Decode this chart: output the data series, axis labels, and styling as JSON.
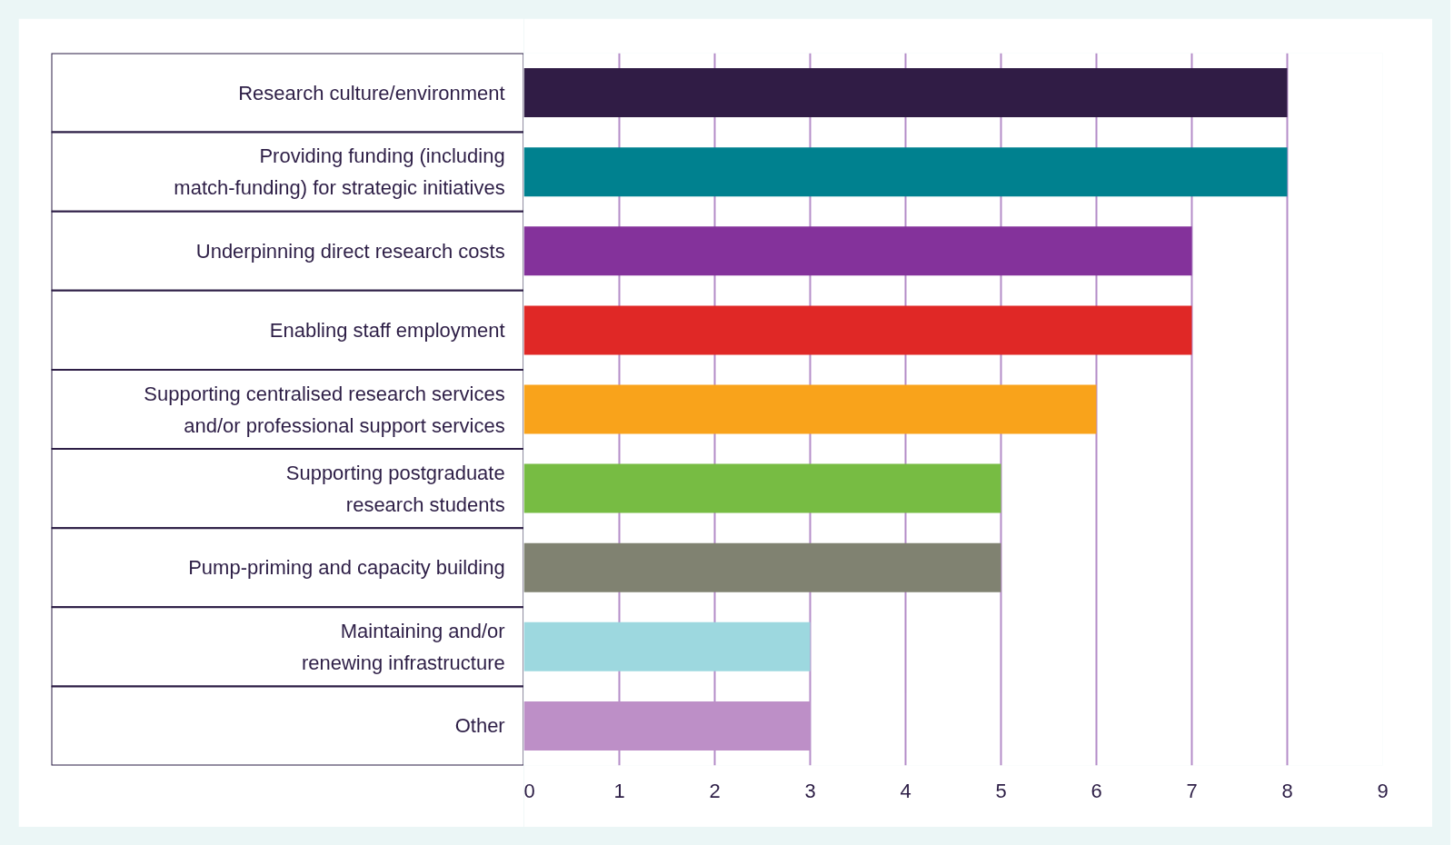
{
  "chart_data": {
    "type": "bar",
    "orientation": "horizontal",
    "categories": [
      "Research culture/environment",
      "Providing funding (including\nmatch-funding) for strategic initiatives",
      "Underpinning direct research costs",
      "Enabling staff employment",
      "Supporting centralised research services\nand/or professional support services",
      "Supporting postgraduate\nresearch students",
      "Pump-priming and capacity building",
      "Maintaining and/or\nrenewing infrastructure",
      "Other"
    ],
    "values": [
      8,
      8,
      7,
      7,
      6,
      5,
      5,
      3,
      3
    ],
    "colors": [
      "#301c45",
      "#00818f",
      "#84329b",
      "#e02826",
      "#f9a31b",
      "#77bc43",
      "#808271",
      "#9dd8df",
      "#bd8fc7"
    ],
    "xlim": [
      0,
      9
    ],
    "xticks": [
      0,
      1,
      2,
      3,
      4,
      5,
      6,
      7,
      8,
      9
    ],
    "grid": "x"
  }
}
